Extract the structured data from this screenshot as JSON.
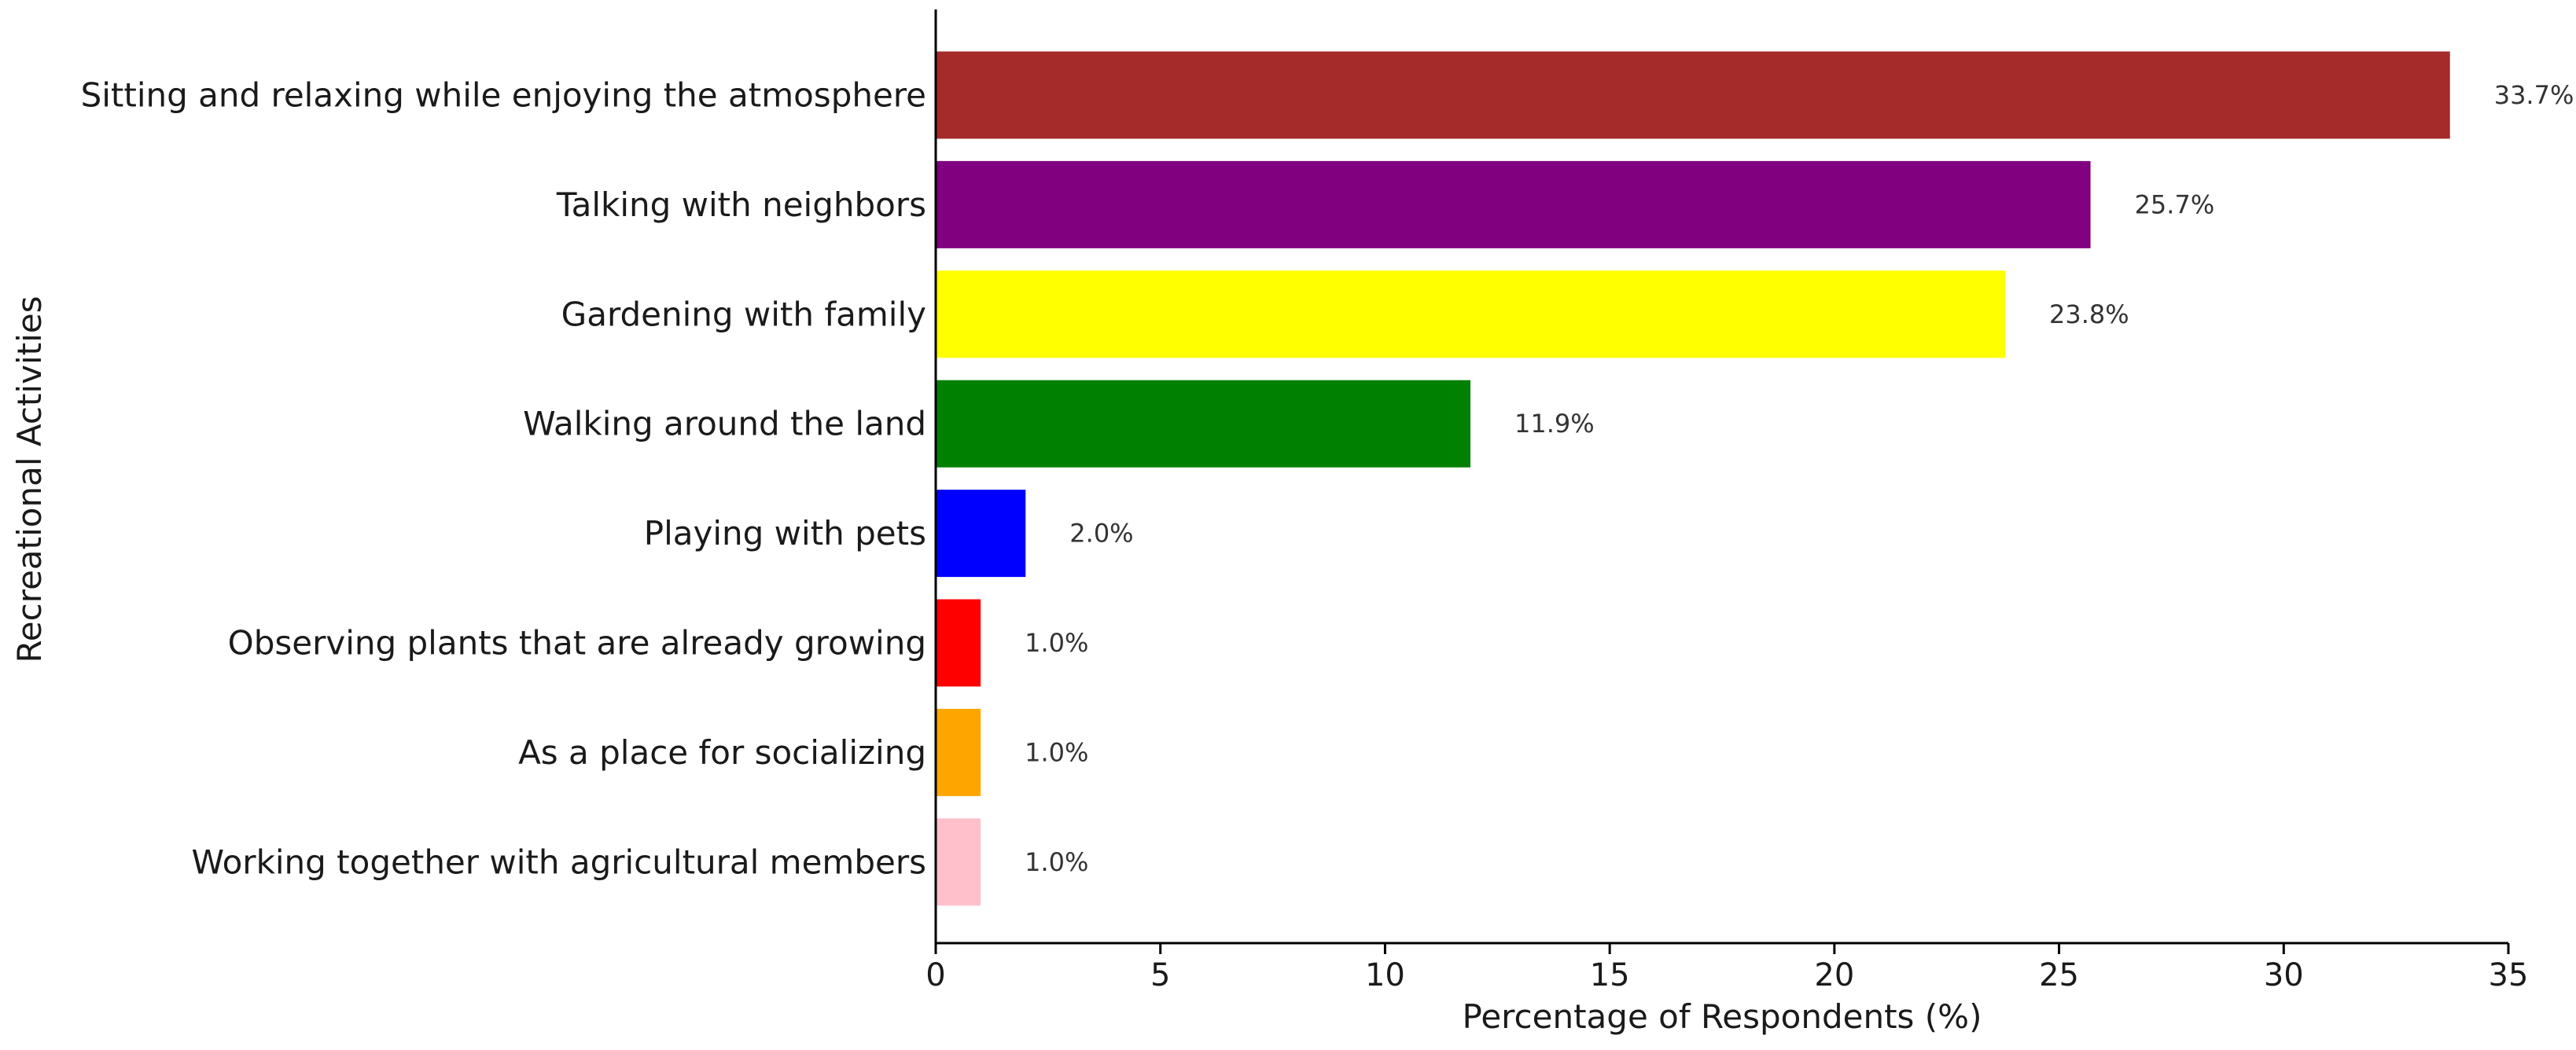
{
  "chart_data": {
    "type": "bar",
    "orientation": "horizontal",
    "title": "",
    "xlabel": "Percentage of Respondents (%)",
    "ylabel": "Recreational Activities",
    "xlim": [
      0,
      35
    ],
    "xticks": [
      0,
      5,
      10,
      15,
      20,
      25,
      30,
      35
    ],
    "xtick_labels": [
      "0",
      "5",
      "10",
      "15",
      "20",
      "25",
      "30",
      "35"
    ],
    "grid": false,
    "categories": [
      "Sitting and relaxing while enjoying the atmosphere",
      "Talking with neighbors",
      "Gardening with family",
      "Walking around the land",
      "Playing with pets",
      "Observing plants that are already growing",
      "As a place for socializing",
      "Working together with agricultural members"
    ],
    "values": [
      33.7,
      25.7,
      23.8,
      11.9,
      2.0,
      1.0,
      1.0,
      1.0
    ],
    "value_labels": [
      "33.7%",
      "25.7%",
      "23.8%",
      "11.9%",
      "2.0%",
      "1.0%",
      "1.0%",
      "1.0%"
    ],
    "colors": [
      "#a52a2a",
      "#800080",
      "#ffff00",
      "#008000",
      "#0000ff",
      "#ff0000",
      "#ffa500",
      "#ffc0cb"
    ]
  }
}
